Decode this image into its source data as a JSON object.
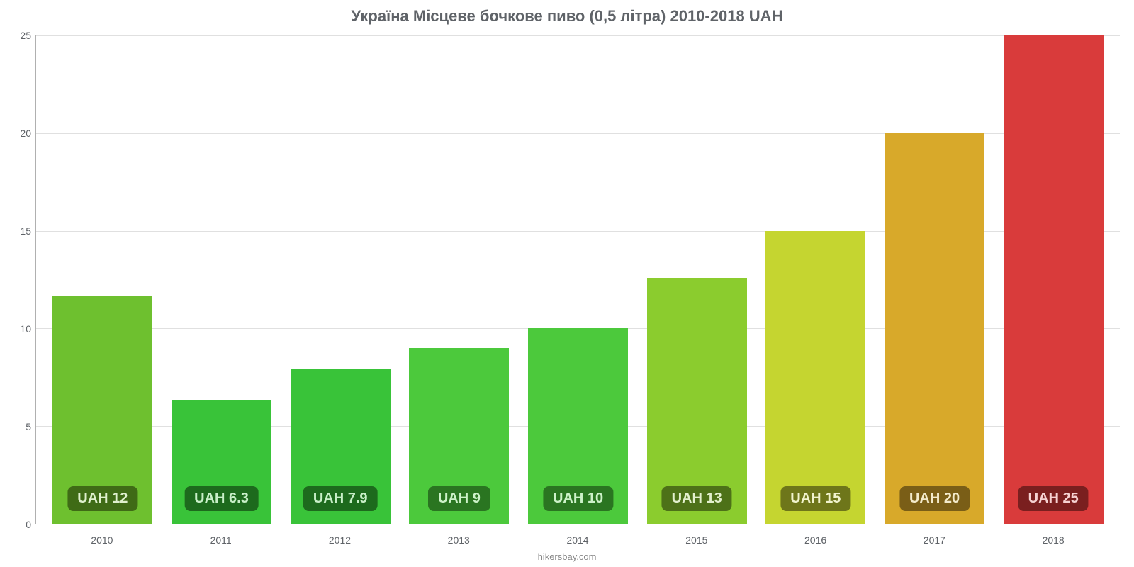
{
  "chart": {
    "type": "bar",
    "title": "Україна Місцеве бочкове пиво (0,5 літра) 2010-2018 UAH",
    "title_fontsize": 22,
    "title_color": "#5f6368",
    "credit": "hikersbay.com",
    "background_color": "#ffffff",
    "grid_color": "#e0e0e0",
    "axis_color": "#b0b0b0",
    "tick_fontsize": 14,
    "tick_color": "#5f6368",
    "ylim": [
      0,
      25
    ],
    "yticks": [
      0,
      5,
      10,
      15,
      20,
      25
    ],
    "bar_width_pct": 84,
    "label_fontsize": 20,
    "label_fontweight": "bold",
    "label_border_radius": 8,
    "categories": [
      "2010",
      "2011",
      "2012",
      "2013",
      "2014",
      "2015",
      "2016",
      "2017",
      "2018"
    ],
    "values": [
      11.7,
      6.3,
      7.9,
      9,
      10,
      12.6,
      15,
      20,
      25
    ],
    "value_labels": [
      "UAH 12",
      "UAH 6.3",
      "UAH 7.9",
      "UAH 9",
      "UAH 10",
      "UAH 13",
      "UAH 15",
      "UAH 20",
      "UAH 25"
    ],
    "bar_colors": [
      "#6ec02f",
      "#39c339",
      "#39c339",
      "#4cc93c",
      "#4cc93c",
      "#8bcc2e",
      "#c5d530",
      "#d8a92a",
      "#d93b3b"
    ],
    "label_bg_colors": [
      "#3f6b16",
      "#1d6a1d",
      "#1d6a1d",
      "#2a7521",
      "#2a7521",
      "#4d7118",
      "#6e761a",
      "#7a5e17",
      "#7a1f1f"
    ],
    "label_text_colors": [
      "#dff0cd",
      "#c8efc8",
      "#c8efc8",
      "#cdf2c9",
      "#cdf2c9",
      "#e3f0cd",
      "#f1f3cd",
      "#f3eacb",
      "#f6d2d2"
    ]
  }
}
